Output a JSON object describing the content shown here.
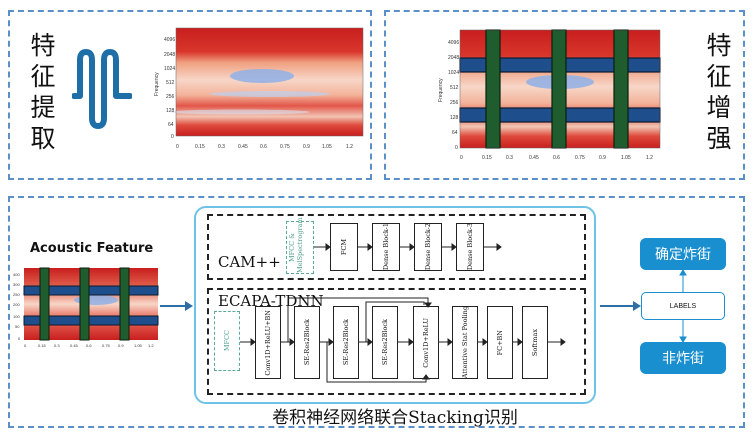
{
  "colors": {
    "dashed_border": "#5b8fc7",
    "arrow": "#2f6ea5",
    "spectrogram_bg": "#cf2a2a",
    "band_blue": "#1f4e8c",
    "bar_green": "#1f5c2e",
    "teal": "#1a8fcf",
    "rounded_border": "#6cc3e6"
  },
  "feature_extraction": {
    "label": [
      "特",
      "征",
      "提",
      "取"
    ],
    "icon": "wave-squiggle-icon"
  },
  "feature_enhancement": {
    "label": [
      "特",
      "征",
      "增",
      "强"
    ]
  },
  "spectrogram": {
    "ylabel": "Frequency",
    "yticks": [
      "4096",
      "2048",
      "1024",
      "512",
      "256",
      "128",
      "64",
      "0"
    ],
    "xticks": [
      "0",
      "0.15",
      "0.3",
      "0.45",
      "0.6",
      "0.75",
      "0.9",
      "1.05",
      "1.2"
    ]
  },
  "acoustic_feature": {
    "title": "Acoustic Feature",
    "yticks": [
      "400",
      "300",
      "250",
      "200",
      "100",
      "50",
      "0"
    ],
    "xticks": [
      "0",
      "0.15",
      "0.3",
      "0.45",
      "0.6",
      "0.75",
      "0.9",
      "1.05",
      "1.2"
    ]
  },
  "camplus": {
    "title": "CAM++",
    "input": "MFCC & MelSpectrogram",
    "blocks": [
      "FCM",
      "Dense Block-1",
      "Dense Block-2",
      "Dense Block-3"
    ]
  },
  "ecapa": {
    "title": "ECAPA-TDNN",
    "input": "MFCC",
    "blocks": [
      "Conv1D+ReLU+BN",
      "SE-Res2Block",
      "SE-Res2Block",
      "SE-Res2Block",
      "Conv1D+ReLU",
      "Attentive Stat Pooling",
      "FC+BN",
      "Softmax"
    ]
  },
  "stacking_label": "卷积神经网络联合Stacking识别",
  "output": {
    "top": "确定炸街",
    "middle": "LABELS",
    "bottom": "非炸街"
  }
}
